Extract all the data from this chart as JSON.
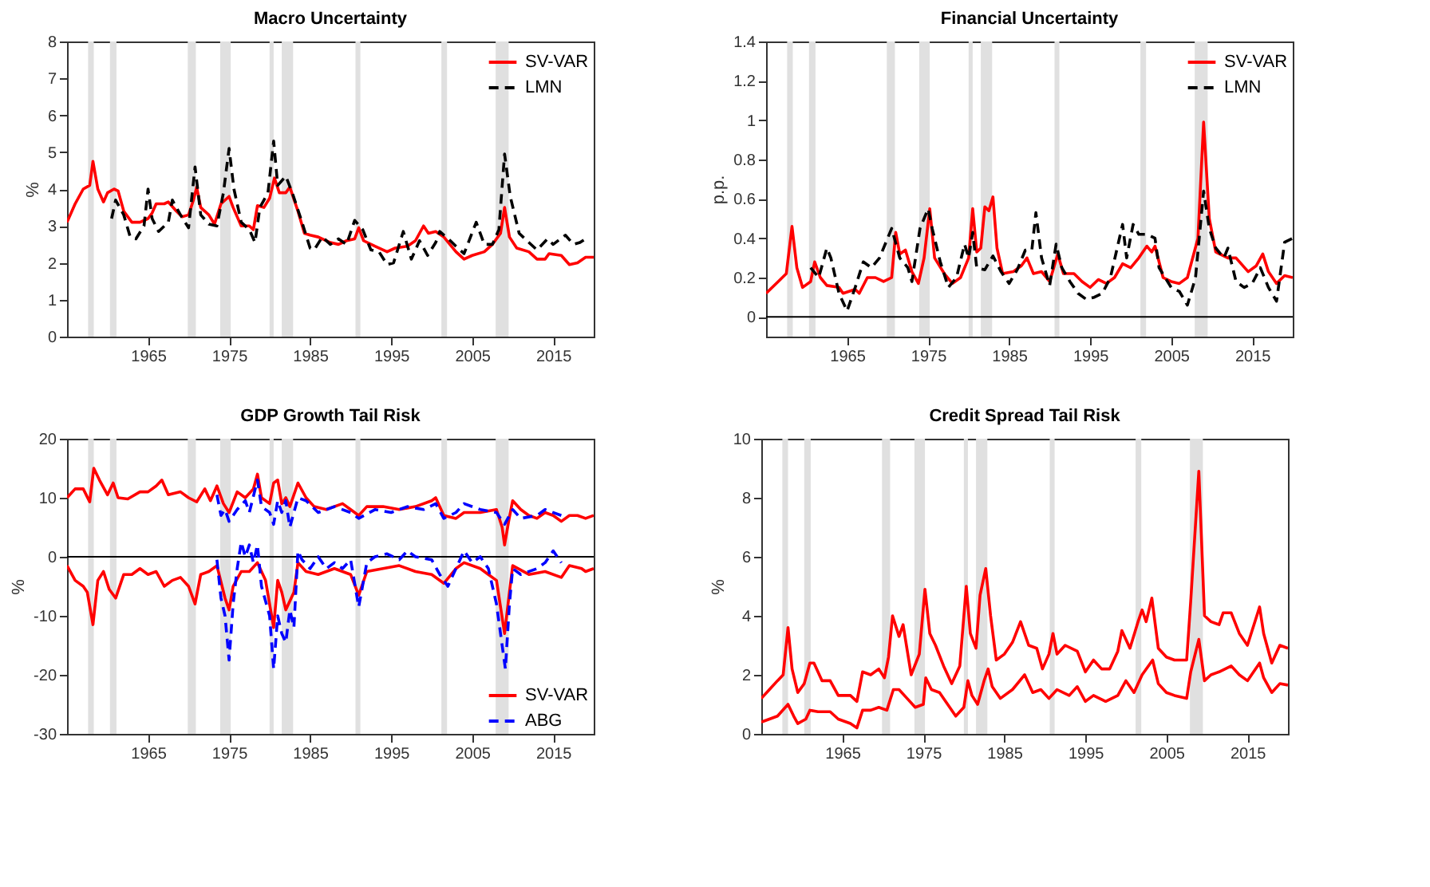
{
  "chart_data": [
    {
      "type": "line",
      "title": "Macro Uncertainty",
      "ylabel": "%",
      "xlim": [
        1955,
        2020
      ],
      "xticks": [
        1965,
        1975,
        1985,
        1995,
        2005,
        2015
      ],
      "ylim": [
        0,
        8
      ],
      "yticks": [
        0,
        1,
        2,
        3,
        4,
        5,
        6,
        7,
        8
      ],
      "grid": false,
      "legend": "top right",
      "marker": "none",
      "bands": [
        {
          "axis": "x",
          "from": 1957.6,
          "to": 1958.3,
          "color": "#e0e0e0"
        },
        {
          "axis": "x",
          "from": 1960.3,
          "to": 1961.1,
          "color": "#e0e0e0"
        },
        {
          "axis": "x",
          "from": 1969.9,
          "to": 1970.9,
          "color": "#e0e0e0"
        },
        {
          "axis": "x",
          "from": 1973.9,
          "to": 1975.2,
          "color": "#e0e0e0"
        },
        {
          "axis": "x",
          "from": 1980.0,
          "to": 1980.5,
          "color": "#e0e0e0"
        },
        {
          "axis": "x",
          "from": 1981.5,
          "to": 1982.9,
          "color": "#e0e0e0"
        },
        {
          "axis": "x",
          "from": 1990.6,
          "to": 1991.2,
          "color": "#e0e0e0"
        },
        {
          "axis": "x",
          "from": 2001.2,
          "to": 2001.9,
          "color": "#e0e0e0"
        },
        {
          "axis": "x",
          "from": 2007.9,
          "to": 2009.5,
          "color": "#e0e0e0"
        }
      ],
      "series": [
        {
          "name": "SV-VAR",
          "color": "#ff0000",
          "line_style": "solid",
          "x": [
            1955,
            1956,
            1957,
            1957.8,
            1958.2,
            1958.8,
            1959.5,
            1960,
            1960.8,
            1961.3,
            1962,
            1963,
            1964,
            1965,
            1965.5,
            1966,
            1967,
            1967.5,
            1968.5,
            1969.2,
            1970,
            1970.6,
            1971,
            1971.5,
            1972.5,
            1973.2,
            1974,
            1975,
            1975.5,
            1976.5,
            1977.5,
            1978,
            1978.5,
            1979.3,
            1980,
            1980.6,
            1981.2,
            1982,
            1982.5,
            1983.5,
            1984.3,
            1985,
            1986,
            1987.5,
            1988.5,
            1989.5,
            1990.5,
            1991,
            1991.6,
            1993,
            1994.5,
            1995.5,
            1997,
            1998,
            1999,
            1999.6,
            2000.5,
            2001.5,
            2003,
            2004,
            2005,
            2006.5,
            2007.5,
            2008.5,
            2009,
            2009.6,
            2010.5,
            2012,
            2013,
            2014,
            2014.5,
            2016,
            2017,
            2018,
            2019,
            2020
          ],
          "values": [
            3.1,
            3.6,
            4.0,
            4.1,
            4.75,
            4.0,
            3.65,
            3.9,
            4.0,
            3.95,
            3.4,
            3.1,
            3.1,
            3.2,
            3.35,
            3.6,
            3.6,
            3.65,
            3.4,
            3.25,
            3.3,
            3.7,
            4.05,
            3.5,
            3.3,
            3.05,
            3.6,
            3.8,
            3.5,
            3.0,
            3.0,
            2.9,
            3.55,
            3.5,
            3.75,
            4.3,
            3.9,
            3.9,
            4.05,
            3.4,
            2.8,
            2.75,
            2.7,
            2.55,
            2.5,
            2.6,
            2.65,
            2.95,
            2.6,
            2.45,
            2.3,
            2.4,
            2.45,
            2.6,
            3.0,
            2.8,
            2.85,
            2.7,
            2.3,
            2.1,
            2.2,
            2.3,
            2.5,
            2.8,
            3.5,
            2.7,
            2.4,
            2.3,
            2.1,
            2.1,
            2.25,
            2.2,
            1.95,
            2.0,
            2.15,
            2.15
          ]
        },
        {
          "name": "LMN",
          "color": "#000000",
          "line_style": "dashed",
          "x": [
            1960.5,
            1961,
            1962,
            1962.8,
            1963.5,
            1964.5,
            1965,
            1965.5,
            1966.3,
            1967.5,
            1968,
            1969,
            1970,
            1970.8,
            1971.5,
            1972.5,
            1973.5,
            1974.3,
            1975,
            1975.6,
            1976.5,
            1977.5,
            1978.2,
            1978.8,
            1979.8,
            1980.5,
            1981,
            1982,
            1982.8,
            1984,
            1985,
            1985.5,
            1986.5,
            1987.5,
            1988.5,
            1989.5,
            1990.5,
            1991.5,
            1992.5,
            1993.5,
            1994.5,
            1995.3,
            1996.5,
            1997.5,
            1998.5,
            1999.5,
            2000.5,
            2001,
            2002.3,
            2003,
            2004,
            2005.5,
            2006.5,
            2007.5,
            2008.3,
            2009,
            2009.7,
            2010.8,
            2012,
            2013,
            2014.3,
            2015,
            2016.5,
            2017.5,
            2018.3,
            2019
          ],
          "values": [
            3.2,
            3.7,
            3.3,
            2.7,
            2.65,
            3.0,
            4.0,
            3.2,
            2.85,
            3.1,
            3.7,
            3.3,
            2.95,
            4.6,
            3.3,
            3.05,
            3.0,
            3.9,
            5.1,
            4.0,
            3.1,
            2.9,
            2.55,
            3.5,
            3.9,
            5.3,
            4.1,
            4.35,
            3.9,
            3.1,
            2.4,
            2.35,
            2.7,
            2.5,
            2.65,
            2.5,
            3.15,
            2.9,
            2.35,
            2.3,
            1.95,
            2.0,
            2.85,
            2.1,
            2.6,
            2.2,
            2.55,
            2.85,
            2.6,
            2.45,
            2.25,
            3.1,
            2.5,
            2.5,
            2.9,
            4.95,
            3.8,
            2.8,
            2.55,
            2.35,
            2.65,
            2.5,
            2.75,
            2.5,
            2.55,
            2.65
          ]
        }
      ]
    },
    {
      "type": "line",
      "title": "Financial Uncertainty",
      "ylabel": "p.p.",
      "xlim": [
        1955,
        2020
      ],
      "xticks": [
        1965,
        1975,
        1985,
        1995,
        2005,
        2015
      ],
      "ylim": [
        -0.1,
        1.4
      ],
      "yticks": [
        0,
        0.2,
        0.4,
        0.6,
        0.8,
        1,
        1.2,
        1.4
      ],
      "grid": false,
      "legend": "top right",
      "marker": "none",
      "ref_lines": [
        {
          "axis": "y",
          "value": 0,
          "color": "#000000",
          "line_style": "solid"
        }
      ],
      "bands": [
        {
          "axis": "x",
          "from": 1957.6,
          "to": 1958.3,
          "color": "#e0e0e0"
        },
        {
          "axis": "x",
          "from": 1960.3,
          "to": 1961.1,
          "color": "#e0e0e0"
        },
        {
          "axis": "x",
          "from": 1969.9,
          "to": 1970.9,
          "color": "#e0e0e0"
        },
        {
          "axis": "x",
          "from": 1973.9,
          "to": 1975.2,
          "color": "#e0e0e0"
        },
        {
          "axis": "x",
          "from": 1980.0,
          "to": 1980.5,
          "color": "#e0e0e0"
        },
        {
          "axis": "x",
          "from": 1981.5,
          "to": 1982.9,
          "color": "#e0e0e0"
        },
        {
          "axis": "x",
          "from": 1990.6,
          "to": 1991.2,
          "color": "#e0e0e0"
        },
        {
          "axis": "x",
          "from": 2001.2,
          "to": 2001.9,
          "color": "#e0e0e0"
        },
        {
          "axis": "x",
          "from": 2007.9,
          "to": 2009.5,
          "color": "#e0e0e0"
        }
      ],
      "series": [
        {
          "name": "SV-VAR",
          "color": "#ff0000",
          "line_style": "solid",
          "x": [
            1955,
            1956.5,
            1957.5,
            1958.2,
            1958.8,
            1959.5,
            1960.5,
            1961,
            1961.7,
            1962.5,
            1964,
            1964.5,
            1966,
            1966.5,
            1967.5,
            1968.5,
            1969.5,
            1970.5,
            1971,
            1971.5,
            1972.2,
            1973,
            1973.8,
            1974.5,
            1975.2,
            1975.8,
            1977,
            1978,
            1979,
            1980,
            1980.5,
            1981,
            1981.5,
            1982,
            1982.5,
            1983,
            1983.5,
            1984.2,
            1985.5,
            1986.5,
            1987.2,
            1988,
            1989,
            1990,
            1991,
            1991.7,
            1993,
            1994,
            1995,
            1996,
            1997,
            1998,
            1999,
            2000,
            2001,
            2002,
            2002.6,
            2003,
            2004,
            2005,
            2006,
            2007,
            2008.3,
            2009,
            2009.7,
            2010.5,
            2012,
            2013,
            2014.5,
            2015.5,
            2016.3,
            2017,
            2018,
            2019,
            2020
          ],
          "values": [
            0.12,
            0.18,
            0.22,
            0.46,
            0.25,
            0.15,
            0.18,
            0.28,
            0.2,
            0.16,
            0.15,
            0.12,
            0.14,
            0.12,
            0.2,
            0.2,
            0.18,
            0.2,
            0.43,
            0.32,
            0.34,
            0.23,
            0.17,
            0.3,
            0.55,
            0.3,
            0.22,
            0.17,
            0.2,
            0.3,
            0.55,
            0.33,
            0.35,
            0.56,
            0.54,
            0.61,
            0.35,
            0.22,
            0.23,
            0.26,
            0.3,
            0.22,
            0.23,
            0.18,
            0.32,
            0.22,
            0.22,
            0.18,
            0.15,
            0.19,
            0.17,
            0.2,
            0.27,
            0.25,
            0.3,
            0.36,
            0.33,
            0.36,
            0.2,
            0.18,
            0.17,
            0.2,
            0.4,
            0.99,
            0.5,
            0.33,
            0.3,
            0.3,
            0.23,
            0.26,
            0.32,
            0.23,
            0.17,
            0.21,
            0.2
          ]
        },
        {
          "name": "LMN",
          "color": "#000000",
          "line_style": "dashed",
          "x": [
            1960.5,
            1961.5,
            1962.5,
            1963,
            1964,
            1965,
            1966,
            1967,
            1968,
            1969,
            1970,
            1970.5,
            1971.5,
            1972.5,
            1973,
            1974,
            1975,
            1975.5,
            1976.5,
            1977.5,
            1978.5,
            1979.5,
            1980,
            1980.5,
            1981,
            1982,
            1983,
            1984,
            1985,
            1986,
            1987,
            1987.8,
            1988.3,
            1989,
            1990,
            1990.8,
            1991.5,
            1992.5,
            1993.5,
            1994.5,
            1995.5,
            1996.5,
            1997.5,
            1999,
            1999.5,
            2000.3,
            2001,
            2002,
            2003,
            2003.5,
            2005,
            2006,
            2007,
            2008,
            2009,
            2009.7,
            2010.5,
            2011.5,
            2012,
            2013,
            2014,
            2015,
            2016,
            2017,
            2018,
            2019,
            2020
          ],
          "values": [
            0.25,
            0.2,
            0.35,
            0.3,
            0.12,
            0.03,
            0.15,
            0.28,
            0.25,
            0.3,
            0.4,
            0.45,
            0.3,
            0.25,
            0.18,
            0.45,
            0.55,
            0.45,
            0.28,
            0.15,
            0.2,
            0.37,
            0.3,
            0.43,
            0.25,
            0.24,
            0.31,
            0.23,
            0.17,
            0.24,
            0.34,
            0.34,
            0.53,
            0.3,
            0.16,
            0.37,
            0.25,
            0.18,
            0.12,
            0.09,
            0.1,
            0.12,
            0.2,
            0.47,
            0.3,
            0.47,
            0.42,
            0.42,
            0.4,
            0.25,
            0.15,
            0.13,
            0.06,
            0.2,
            0.64,
            0.45,
            0.35,
            0.3,
            0.35,
            0.18,
            0.15,
            0.17,
            0.25,
            0.15,
            0.08,
            0.38,
            0.4
          ]
        }
      ]
    },
    {
      "type": "line",
      "title": "GDP Growth Tail Risk",
      "ylabel": "%",
      "xlim": [
        1955,
        2020
      ],
      "xticks": [
        1965,
        1975,
        1985,
        1995,
        2005,
        2015
      ],
      "ylim": [
        -30,
        20
      ],
      "yticks": [
        -30,
        -20,
        -10,
        0,
        10,
        20
      ],
      "grid": false,
      "legend": "bottom right",
      "marker": "none",
      "ref_lines": [
        {
          "axis": "y",
          "value": 0,
          "color": "#000000",
          "line_style": "solid"
        }
      ],
      "bands": [
        {
          "axis": "x",
          "from": 1957.6,
          "to": 1958.3,
          "color": "#e0e0e0"
        },
        {
          "axis": "x",
          "from": 1960.3,
          "to": 1961.1,
          "color": "#e0e0e0"
        },
        {
          "axis": "x",
          "from": 1969.9,
          "to": 1970.9,
          "color": "#e0e0e0"
        },
        {
          "axis": "x",
          "from": 1973.9,
          "to": 1975.2,
          "color": "#e0e0e0"
        },
        {
          "axis": "x",
          "from": 1980.0,
          "to": 1980.5,
          "color": "#e0e0e0"
        },
        {
          "axis": "x",
          "from": 1981.5,
          "to": 1982.9,
          "color": "#e0e0e0"
        },
        {
          "axis": "x",
          "from": 1990.6,
          "to": 1991.2,
          "color": "#e0e0e0"
        },
        {
          "axis": "x",
          "from": 2001.2,
          "to": 2001.9,
          "color": "#e0e0e0"
        },
        {
          "axis": "x",
          "from": 2007.9,
          "to": 2009.5,
          "color": "#e0e0e0"
        }
      ],
      "series": [
        {
          "name": "SV-VAR",
          "color": "#ff0000",
          "line_style": "solid",
          "x": [
            1955,
            1956,
            1957,
            1957.8,
            1958.3,
            1959,
            1960,
            1960.7,
            1961.3,
            1962.5,
            1964,
            1965,
            1966,
            1966.7,
            1967.5,
            1969,
            1970,
            1971,
            1972,
            1972.7,
            1973.5,
            1974.3,
            1975,
            1976,
            1977,
            1978,
            1978.5,
            1979,
            1980,
            1980.5,
            1981,
            1981.5,
            1982,
            1982.5,
            1983.5,
            1984.5,
            1985.5,
            1987,
            1989,
            1990,
            1991,
            1992,
            1994,
            1996,
            1998,
            2000,
            2000.5,
            2001.5,
            2003,
            2004,
            2006,
            2008,
            2008.7,
            2009,
            2009.5,
            2010,
            2011,
            2012,
            2013,
            2014,
            2015,
            2016,
            2017,
            2018,
            2019,
            2020
          ],
          "values": [
            10,
            11.5,
            11.5,
            9.3,
            15,
            13,
            10.5,
            12.5,
            10,
            9.8,
            11,
            11,
            12,
            13,
            10.5,
            11,
            10,
            9.3,
            11.5,
            9.5,
            12,
            9,
            7.5,
            11,
            10,
            11.5,
            14,
            10,
            9,
            12.5,
            13,
            9,
            10,
            8.5,
            12.5,
            10,
            8.5,
            8,
            9,
            8,
            7,
            8.5,
            8.5,
            8,
            8.5,
            9.5,
            10,
            7,
            6.5,
            7.5,
            7.5,
            8,
            5,
            2,
            6,
            9.5,
            8,
            7,
            6.5,
            7.5,
            7,
            6,
            7,
            7,
            6.5,
            7
          ]
        },
        {
          "color": "#ff0000",
          "line_style": "solid",
          "x": [
            1955,
            1956,
            1957,
            1957.5,
            1958.2,
            1958.8,
            1959.5,
            1960.2,
            1961,
            1962,
            1963,
            1964,
            1965,
            1966,
            1967,
            1968,
            1969,
            1970,
            1970.8,
            1971.5,
            1972.5,
            1973.5,
            1974.5,
            1975,
            1975.5,
            1976.5,
            1977.5,
            1978.5,
            1979.5,
            1980.5,
            1981,
            1981.5,
            1982,
            1983,
            1983.5,
            1984.5,
            1986,
            1988,
            1990,
            1991,
            1992,
            1994,
            1996,
            1998,
            2000,
            2001.5,
            2003,
            2004,
            2006,
            2007,
            2008,
            2009,
            2009.6,
            2010,
            2012,
            2014,
            2016,
            2017,
            2018.5,
            2019,
            2020
          ],
          "values": [
            -1.5,
            -4,
            -5,
            -6,
            -11.5,
            -4,
            -2.5,
            -5.5,
            -7,
            -3,
            -3,
            -2,
            -3,
            -2.5,
            -5,
            -4,
            -3.5,
            -5,
            -8,
            -3,
            -2.5,
            -1.5,
            -7,
            -9,
            -5,
            -2.5,
            -2.5,
            -1,
            -4,
            -12,
            -4,
            -6,
            -9,
            -6,
            -1,
            -2.5,
            -3,
            -2,
            -3,
            -6.5,
            -2.5,
            -2,
            -1.5,
            -2.5,
            -3,
            -4.5,
            -2,
            -1,
            -2,
            -3,
            -4,
            -13,
            -6,
            -1.5,
            -3,
            -2.5,
            -3.5,
            -1.5,
            -2,
            -2.5,
            -2
          ]
        },
        {
          "name": "ABG",
          "color": "#0000ff",
          "line_style": "dashed",
          "x": [
            1973.5,
            1974,
            1974.5,
            1975,
            1976,
            1977,
            1977.5,
            1978.5,
            1979,
            1980,
            1980.5,
            1981,
            1981.5,
            1982,
            1982.5,
            1983.5,
            1984.5,
            1986,
            1988,
            1990,
            1991,
            1993,
            1995,
            1997,
            1999,
            2000.5,
            2001.5,
            2003,
            2004,
            2006,
            2008,
            2009,
            2010,
            2011,
            2013,
            2014,
            2016
          ],
          "values": [
            10.5,
            7,
            8,
            6,
            8,
            9.5,
            7.5,
            13,
            8.5,
            7.5,
            5.5,
            9.5,
            7.5,
            9.5,
            5,
            10,
            9.5,
            7.5,
            8.5,
            7.5,
            6.5,
            8,
            7.5,
            8.5,
            8,
            9,
            6.5,
            7.5,
            9,
            8,
            7.5,
            5.5,
            8,
            6.5,
            7,
            8,
            7
          ]
        },
        {
          "color": "#0000ff",
          "line_style": "dashed",
          "x": [
            1973.5,
            1974,
            1974.5,
            1975,
            1975.5,
            1976,
            1976.5,
            1977,
            1977.5,
            1978,
            1978.5,
            1979,
            1980,
            1980.5,
            1981,
            1981.5,
            1982,
            1982.5,
            1983,
            1983.5,
            1984,
            1985,
            1986,
            1987,
            1988,
            1989,
            1990,
            1991,
            1992,
            1993,
            1994.5,
            1996,
            1997,
            1998,
            2000,
            2001,
            2002,
            2003,
            2004,
            2005,
            2006,
            2007,
            2008,
            2008.7,
            2009.1,
            2009.6,
            2010,
            2011,
            2013,
            2014,
            2015,
            2016
          ],
          "values": [
            -0.5,
            -7,
            -10,
            -17.5,
            -8,
            -2,
            2.5,
            0,
            2,
            -1,
            2,
            -5,
            -10,
            -19,
            -10,
            -13,
            -14.5,
            -9,
            -12,
            1,
            -0.5,
            -2,
            0,
            -2,
            -1,
            -2,
            -0.5,
            -8.5,
            -1,
            0,
            0.5,
            -0.5,
            1,
            0,
            -0.5,
            -3,
            -5,
            -2,
            1,
            -1,
            0,
            -2,
            -8,
            -15,
            -19,
            -8,
            -2,
            -3,
            -2,
            -1,
            1,
            -1
          ]
        }
      ]
    },
    {
      "type": "line",
      "title": "Credit Spread Tail Risk",
      "ylabel": "%",
      "xlim": [
        1955,
        2020
      ],
      "xticks": [
        1965,
        1975,
        1985,
        1995,
        2005,
        2015
      ],
      "ylim": [
        0,
        10
      ],
      "yticks": [
        0,
        2,
        4,
        6,
        8,
        10
      ],
      "grid": false,
      "legend": false,
      "marker": "none",
      "bands": [
        {
          "axis": "x",
          "from": 1957.6,
          "to": 1958.3,
          "color": "#e0e0e0"
        },
        {
          "axis": "x",
          "from": 1960.3,
          "to": 1961.1,
          "color": "#e0e0e0"
        },
        {
          "axis": "x",
          "from": 1969.9,
          "to": 1970.9,
          "color": "#e0e0e0"
        },
        {
          "axis": "x",
          "from": 1973.9,
          "to": 1975.2,
          "color": "#e0e0e0"
        },
        {
          "axis": "x",
          "from": 1980.0,
          "to": 1980.5,
          "color": "#e0e0e0"
        },
        {
          "axis": "x",
          "from": 1981.5,
          "to": 1982.9,
          "color": "#e0e0e0"
        },
        {
          "axis": "x",
          "from": 1990.6,
          "to": 1991.2,
          "color": "#e0e0e0"
        },
        {
          "axis": "x",
          "from": 2001.2,
          "to": 2001.9,
          "color": "#e0e0e0"
        },
        {
          "axis": "x",
          "from": 2007.9,
          "to": 2009.5,
          "color": "#e0e0e0"
        }
      ],
      "series": [
        {
          "color": "#ff0000",
          "line_style": "solid",
          "x": [
            1955,
            1956,
            1957,
            1957.7,
            1958.3,
            1958.8,
            1959.5,
            1960.3,
            1961,
            1961.5,
            1962.5,
            1963.5,
            1964.5,
            1966,
            1966.8,
            1967.5,
            1968.5,
            1969.5,
            1970.2,
            1970.7,
            1971.2,
            1972,
            1972.5,
            1973.5,
            1974.5,
            1975.2,
            1975.8,
            1976.5,
            1977.5,
            1978.5,
            1979.5,
            1980.3,
            1980.8,
            1981.5,
            1982,
            1982.7,
            1983.3,
            1984,
            1985,
            1986,
            1987,
            1988,
            1989,
            1989.7,
            1990.5,
            1991,
            1991.5,
            1992.5,
            1994,
            1995,
            1996,
            1997,
            1998,
            1999,
            1999.5,
            2000.5,
            2001.5,
            2002,
            2002.5,
            2003.2,
            2004,
            2005,
            2006,
            2007.5,
            2008,
            2009,
            2009.7,
            2010.5,
            2011.5,
            2012,
            2013,
            2014,
            2015,
            2016.5,
            2017,
            2018,
            2019,
            2020
          ],
          "values": [
            1.2,
            1.5,
            1.8,
            2.0,
            3.6,
            2.2,
            1.4,
            1.7,
            2.4,
            2.4,
            1.8,
            1.8,
            1.3,
            1.3,
            1.1,
            2.1,
            2.0,
            2.2,
            1.9,
            2.6,
            4.0,
            3.3,
            3.7,
            2.0,
            2.7,
            4.9,
            3.4,
            3.0,
            2.3,
            1.7,
            2.3,
            5.0,
            3.4,
            2.9,
            4.7,
            5.6,
            4.0,
            2.5,
            2.7,
            3.1,
            3.8,
            3.0,
            2.9,
            2.2,
            2.7,
            3.4,
            2.7,
            3.0,
            2.8,
            2.1,
            2.5,
            2.2,
            2.2,
            2.8,
            3.5,
            2.9,
            3.8,
            4.2,
            3.8,
            4.6,
            2.9,
            2.6,
            2.5,
            2.5,
            4.5,
            8.9,
            4.0,
            3.8,
            3.7,
            4.1,
            4.1,
            3.4,
            3.0,
            4.3,
            3.4,
            2.4,
            3.0,
            2.9
          ]
        },
        {
          "color": "#ff0000",
          "line_style": "solid",
          "x": [
            1955,
            1956,
            1957,
            1958.3,
            1959,
            1959.5,
            1960.5,
            1961,
            1962,
            1963.5,
            1964.5,
            1966,
            1966.8,
            1967.5,
            1968.5,
            1969.5,
            1970.5,
            1971.3,
            1972,
            1973,
            1974,
            1975,
            1975.3,
            1976,
            1977,
            1978,
            1979,
            1980,
            1980.5,
            1981,
            1981.7,
            1982.5,
            1983,
            1983.5,
            1984.5,
            1986,
            1987.5,
            1988.5,
            1989.5,
            1990.5,
            1991.5,
            1993,
            1994,
            1995,
            1996,
            1997.5,
            1999,
            2000,
            2001,
            2002,
            2003.3,
            2004,
            2005,
            2006,
            2007.5,
            2008,
            2009,
            2009.7,
            2010.5,
            2011.5,
            2013,
            2014,
            2015,
            2016.5,
            2017,
            2018,
            2019,
            2020
          ],
          "values": [
            0.4,
            0.5,
            0.6,
            1.0,
            0.6,
            0.35,
            0.5,
            0.8,
            0.75,
            0.75,
            0.5,
            0.35,
            0.2,
            0.8,
            0.8,
            0.9,
            0.8,
            1.5,
            1.5,
            1.2,
            0.9,
            1.0,
            1.9,
            1.5,
            1.4,
            1.0,
            0.6,
            0.9,
            1.8,
            1.3,
            1.0,
            1.8,
            2.2,
            1.6,
            1.2,
            1.5,
            2.0,
            1.4,
            1.5,
            1.2,
            1.5,
            1.3,
            1.6,
            1.1,
            1.3,
            1.1,
            1.3,
            1.8,
            1.4,
            2.0,
            2.5,
            1.7,
            1.4,
            1.3,
            1.2,
            2.1,
            3.2,
            1.8,
            2.0,
            2.1,
            2.3,
            2.0,
            1.8,
            2.4,
            1.9,
            1.4,
            1.7,
            1.65
          ]
        }
      ]
    }
  ]
}
